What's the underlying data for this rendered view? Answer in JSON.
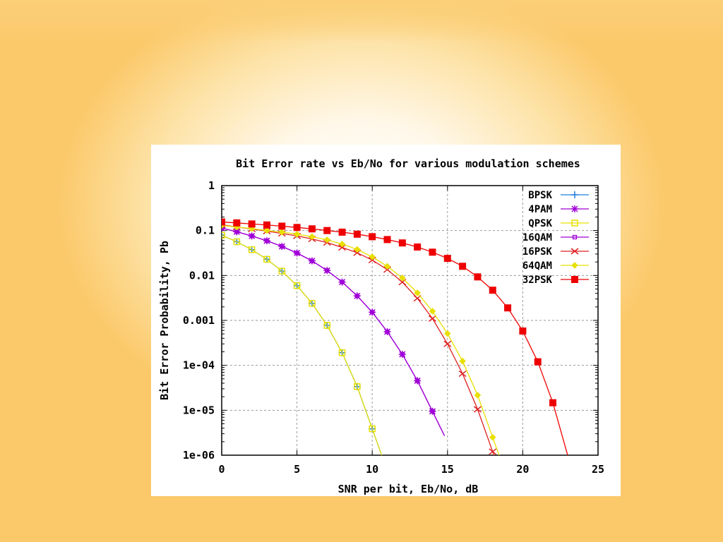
{
  "chart_data": {
    "type": "line",
    "title": "Bit Error rate vs Eb/No for various modulation schemes",
    "xlabel": "SNR per bit, Eb/No, dB",
    "ylabel": "Bit Error Probability, Pb",
    "xlim": [
      0,
      25
    ],
    "ylim": [
      1e-06,
      1
    ],
    "yscale": "log",
    "grid": true,
    "legend_position": "top-right",
    "x_ticks": [
      0,
      5,
      10,
      15,
      20,
      25
    ],
    "y_ticks": [
      {
        "value": 1,
        "label": "1"
      },
      {
        "value": 0.1,
        "label": "0.1"
      },
      {
        "value": 0.01,
        "label": "0.01"
      },
      {
        "value": 0.001,
        "label": "0.001"
      },
      {
        "value": 0.0001,
        "label": "1e-04"
      },
      {
        "value": 1e-05,
        "label": "1e-05"
      },
      {
        "value": 1e-06,
        "label": "1e-06"
      }
    ],
    "series": [
      {
        "name": "BPSK",
        "color": "#1f7fe0",
        "marker": "plus",
        "x": [
          0,
          1,
          2,
          3,
          4,
          5,
          6,
          7,
          8,
          9,
          10
        ],
        "y": [
          0.0786,
          0.0563,
          0.0375,
          0.0229,
          0.0125,
          0.00595,
          0.00239,
          0.000773,
          0.000191,
          3.36e-05,
          3.87e-06
        ]
      },
      {
        "name": "4PAM",
        "color": "#a000d8",
        "marker": "star",
        "x": [
          0,
          1,
          2,
          3,
          4,
          5,
          6,
          7,
          8,
          9,
          10,
          11,
          12,
          13,
          14
        ],
        "y": [
          0.1136,
          0.0939,
          0.0757,
          0.0592,
          0.0444,
          0.0316,
          0.0211,
          0.0129,
          0.00715,
          0.00351,
          0.00152,
          0.000561,
          0.000176,
          4.55e-05,
          9.48e-06
        ]
      },
      {
        "name": "QPSK",
        "color": "#e8e000",
        "marker": "square-open",
        "x": [
          0,
          1,
          2,
          3,
          4,
          5,
          6,
          7,
          8,
          9,
          10
        ],
        "y": [
          0.0786,
          0.0563,
          0.0375,
          0.0229,
          0.0125,
          0.00595,
          0.00239,
          0.000773,
          0.000191,
          3.36e-05,
          3.87e-06
        ]
      },
      {
        "name": "16QAM",
        "color": "#a000d8",
        "marker": "square-small",
        "x": [
          0,
          1,
          2,
          3,
          4,
          5,
          6,
          7,
          8,
          9,
          10,
          11,
          12,
          13,
          14
        ],
        "y": [
          0.1136,
          0.0939,
          0.0757,
          0.0592,
          0.0444,
          0.0316,
          0.0211,
          0.0129,
          0.00715,
          0.00351,
          0.00152,
          0.000561,
          0.000176,
          4.55e-05,
          9.48e-06
        ]
      },
      {
        "name": "16PSK",
        "color": "#e02020",
        "marker": "cross",
        "x": [
          0,
          1,
          2,
          3,
          4,
          5,
          6,
          7,
          8,
          9,
          10,
          11,
          12,
          13,
          14,
          15,
          16,
          17,
          18
        ],
        "y": [
          0.135,
          0.12,
          0.108,
          0.097,
          0.086,
          0.076,
          0.065,
          0.054,
          0.042,
          0.032,
          0.022,
          0.0135,
          0.0071,
          0.0031,
          0.0011,
          0.0003,
          6.5e-05,
          1.05e-05,
          1.2e-06
        ]
      },
      {
        "name": "64QAM",
        "color": "#e8e000",
        "marker": "diamond",
        "x": [
          0,
          1,
          2,
          3,
          4,
          5,
          6,
          7,
          8,
          9,
          10,
          11,
          12,
          13,
          14,
          15,
          16,
          17,
          18
        ],
        "y": [
          0.13,
          0.12,
          0.11,
          0.1,
          0.092,
          0.083,
          0.073,
          0.062,
          0.05,
          0.038,
          0.026,
          0.016,
          0.0088,
          0.0041,
          0.0016,
          0.00051,
          0.000124,
          2.16e-05,
          2.5e-06
        ]
      },
      {
        "name": "32PSK",
        "color": "#ee0000",
        "marker": "square-filled",
        "x": [
          0,
          1,
          2,
          3,
          4,
          5,
          6,
          7,
          8,
          9,
          10,
          11,
          12,
          13,
          14,
          15,
          16,
          17,
          18,
          19,
          20,
          21,
          22,
          23
        ],
        "y": [
          0.155,
          0.148,
          0.14,
          0.133,
          0.125,
          0.117,
          0.109,
          0.1,
          0.092,
          0.083,
          0.073,
          0.063,
          0.053,
          0.043,
          0.033,
          0.024,
          0.016,
          0.0093,
          0.0047,
          0.0019,
          0.00058,
          0.00012,
          1.47e-05,
          9.5e-07
        ]
      }
    ]
  }
}
